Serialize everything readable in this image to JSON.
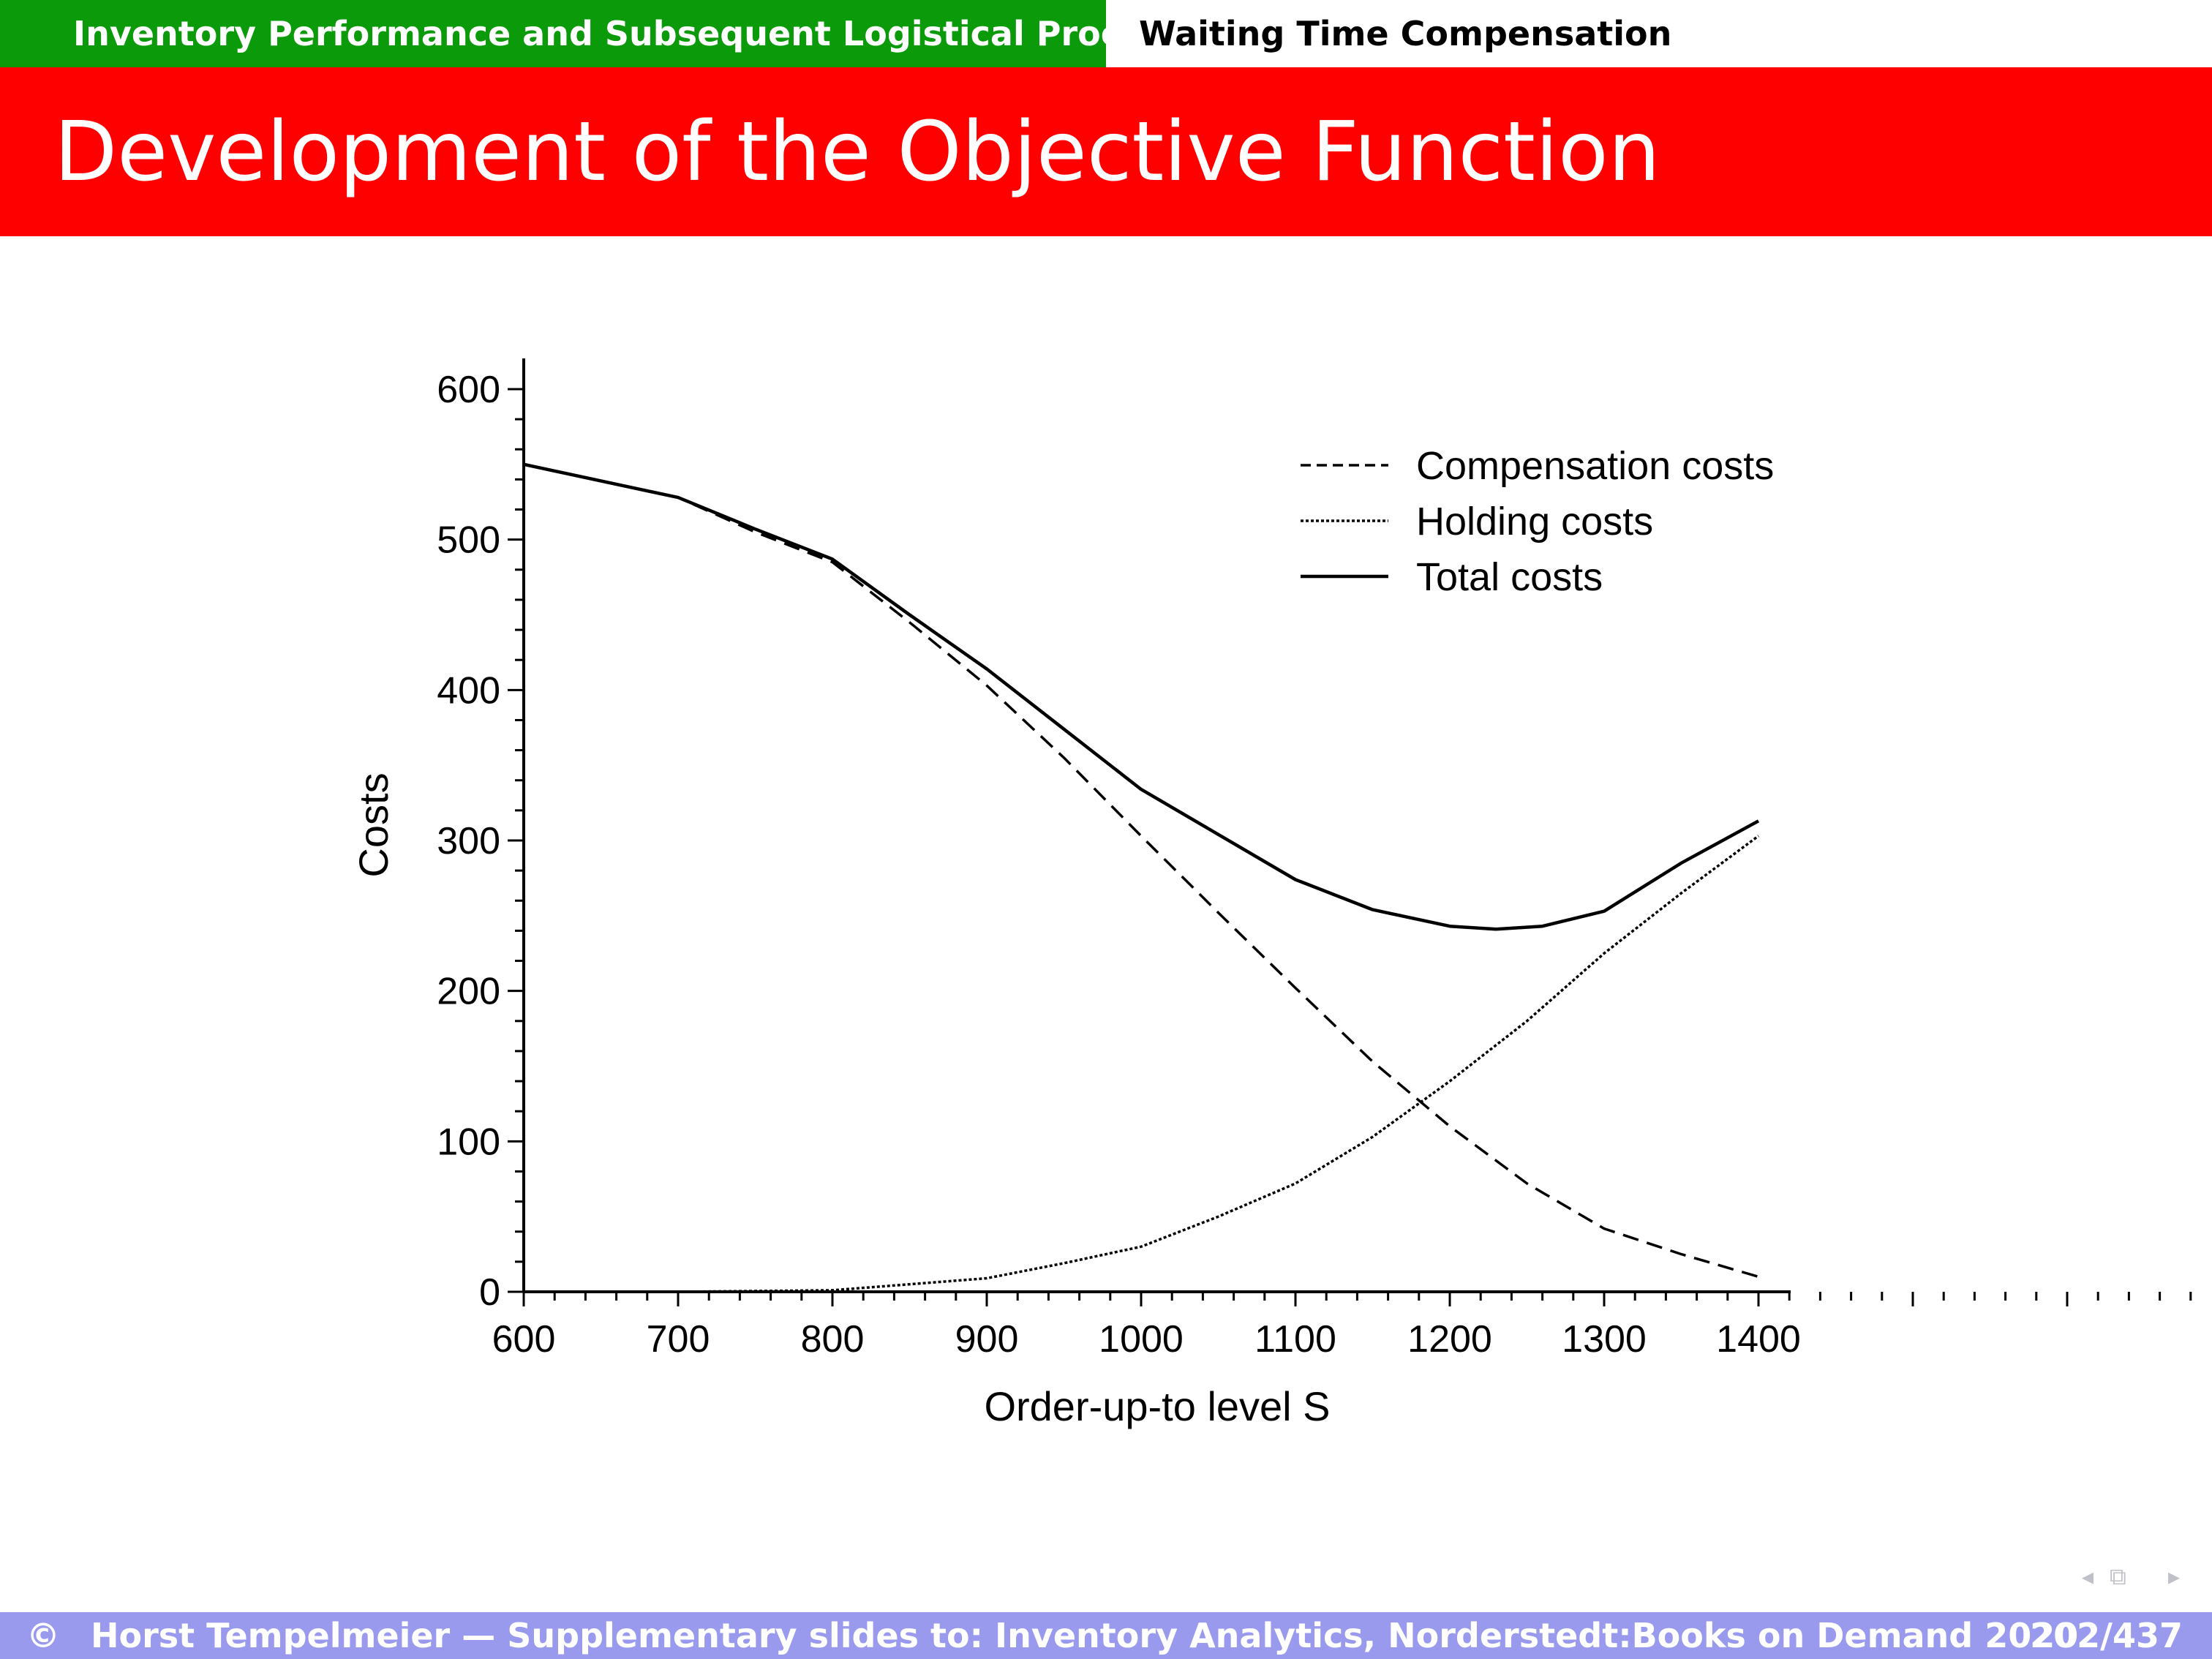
{
  "header": {
    "section": "Inventory Performance and Subsequent Logistical Processes",
    "subsection": "Waiting Time Compensation"
  },
  "slide_title": "Development of the Objective Function",
  "chart_data": {
    "type": "line",
    "xlabel": "Order-up-to level S",
    "ylabel": "Costs",
    "xlim": [
      600,
      1400
    ],
    "ylim": [
      0,
      620
    ],
    "x_ticks": [
      600,
      700,
      800,
      900,
      1000,
      1100,
      1200,
      1300,
      1400
    ],
    "y_ticks": [
      0,
      100,
      200,
      300,
      400,
      500,
      600
    ],
    "grid": false,
    "legend_position": "top-right",
    "series": [
      {
        "name": "Compensation costs",
        "style": "dashed",
        "x": [
          600,
          700,
          750,
          800,
          850,
          900,
          950,
          1000,
          1050,
          1100,
          1150,
          1200,
          1250,
          1300,
          1350,
          1400
        ],
        "y": [
          550,
          528,
          505,
          485,
          445,
          403,
          355,
          303,
          252,
          202,
          153,
          110,
          72,
          42,
          25,
          10
        ]
      },
      {
        "name": "Holding costs",
        "style": "dotted",
        "x": [
          600,
          700,
          800,
          850,
          900,
          950,
          1000,
          1050,
          1100,
          1150,
          1200,
          1250,
          1300,
          1350,
          1400
        ],
        "y": [
          0,
          0,
          1,
          5,
          9,
          19,
          30,
          50,
          72,
          103,
          140,
          180,
          225,
          265,
          303
        ]
      },
      {
        "name": "Total costs",
        "style": "solid",
        "x": [
          600,
          700,
          750,
          800,
          850,
          900,
          950,
          1000,
          1050,
          1100,
          1150,
          1200,
          1230,
          1260,
          1300,
          1350,
          1400
        ],
        "y": [
          550,
          528,
          507,
          487,
          450,
          414,
          374,
          334,
          304,
          274,
          254,
          243,
          241,
          243,
          253,
          285,
          313
        ]
      }
    ]
  },
  "footer": {
    "copyright_symbol": "c",
    "text": "Horst Tempelmeier — Supplementary slides to: Inventory Analytics, Norderstedt:Books on Demand 2020",
    "page": "202/437"
  },
  "nav_icons": [
    "arrow-left-icon",
    "frames-icon",
    "arrow-right-icon"
  ]
}
